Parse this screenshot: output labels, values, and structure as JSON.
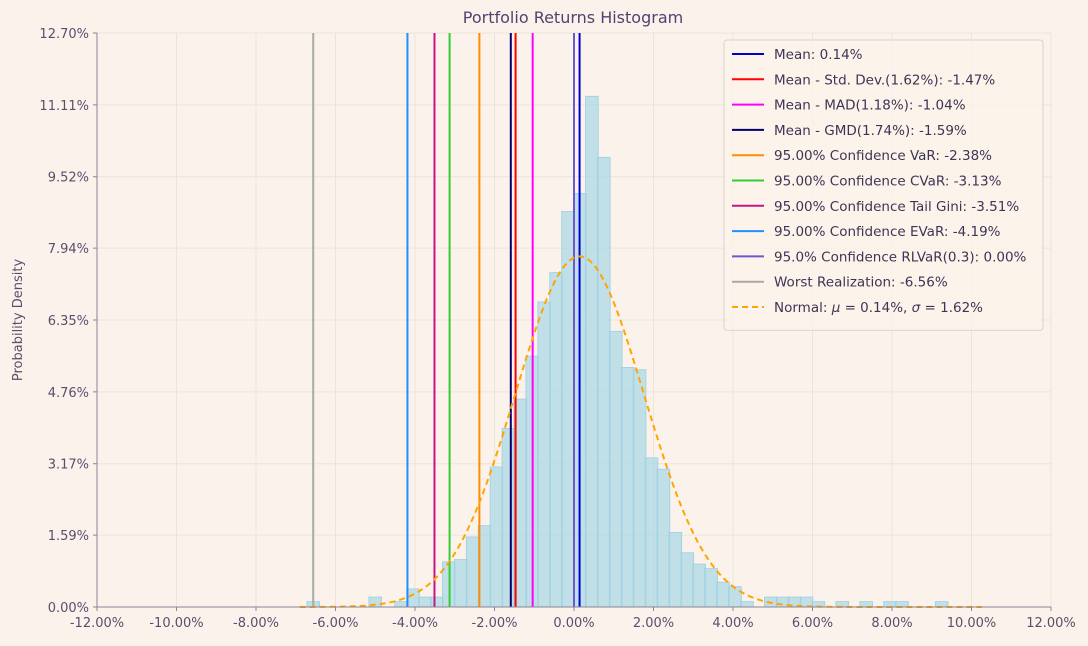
{
  "chart_data": {
    "type": "bar",
    "title": "Portfolio Returns Histogram",
    "xlabel": "",
    "ylabel": "Probability Density",
    "xlim": [
      -12,
      12
    ],
    "ylim": [
      0,
      12.7
    ],
    "x_ticks": [
      -12,
      -10,
      -8,
      -6,
      -4,
      -2,
      0,
      2,
      4,
      6,
      8,
      10,
      12
    ],
    "x_tick_labels": [
      "-12.00%",
      "-10.00%",
      "-8.00%",
      "-6.00%",
      "-4.00%",
      "-2.00%",
      "0.00%",
      "2.00%",
      "4.00%",
      "6.00%",
      "8.00%",
      "10.00%",
      "12.00%"
    ],
    "y_ticks": [
      0,
      1.59,
      3.17,
      4.76,
      6.35,
      7.94,
      9.52,
      11.11,
      12.7
    ],
    "y_tick_labels": [
      "0.00%",
      "1.59%",
      "3.17%",
      "4.76%",
      "6.35%",
      "7.94%",
      "9.52%",
      "11.11%",
      "12.70%"
    ],
    "grid": true,
    "legend_position": "top-right",
    "histogram": {
      "bin_width": 0.32,
      "bar_color": "#add8e6",
      "bars": [
        {
          "x": -6.56,
          "density": 0.12
        },
        {
          "x": -5.0,
          "density": 0.22
        },
        {
          "x": -4.35,
          "density": 0.12
        },
        {
          "x": -4.05,
          "density": 0.4
        },
        {
          "x": -3.75,
          "density": 0.22
        },
        {
          "x": -3.45,
          "density": 0.22
        },
        {
          "x": -3.15,
          "density": 1.0
        },
        {
          "x": -2.85,
          "density": 1.05
        },
        {
          "x": -2.55,
          "density": 1.55
        },
        {
          "x": -2.25,
          "density": 1.8
        },
        {
          "x": -1.95,
          "density": 3.1
        },
        {
          "x": -1.65,
          "density": 3.95
        },
        {
          "x": -1.35,
          "density": 4.6
        },
        {
          "x": -1.05,
          "density": 5.55
        },
        {
          "x": -0.75,
          "density": 6.75
        },
        {
          "x": -0.45,
          "density": 7.4
        },
        {
          "x": -0.15,
          "density": 8.75
        },
        {
          "x": 0.15,
          "density": 9.15
        },
        {
          "x": 0.45,
          "density": 11.3
        },
        {
          "x": 0.75,
          "density": 9.95
        },
        {
          "x": 1.05,
          "density": 6.1
        },
        {
          "x": 1.35,
          "density": 5.3
        },
        {
          "x": 1.65,
          "density": 5.25
        },
        {
          "x": 1.95,
          "density": 3.3
        },
        {
          "x": 2.25,
          "density": 3.05
        },
        {
          "x": 2.55,
          "density": 1.65
        },
        {
          "x": 2.85,
          "density": 1.2
        },
        {
          "x": 3.15,
          "density": 0.95
        },
        {
          "x": 3.45,
          "density": 0.85
        },
        {
          "x": 3.75,
          "density": 0.55
        },
        {
          "x": 4.05,
          "density": 0.45
        },
        {
          "x": 4.35,
          "density": 0.12
        },
        {
          "x": 4.95,
          "density": 0.22
        },
        {
          "x": 5.25,
          "density": 0.22
        },
        {
          "x": 5.55,
          "density": 0.22
        },
        {
          "x": 5.85,
          "density": 0.22
        },
        {
          "x": 6.15,
          "density": 0.12
        },
        {
          "x": 6.75,
          "density": 0.12
        },
        {
          "x": 7.35,
          "density": 0.12
        },
        {
          "x": 7.95,
          "density": 0.12
        },
        {
          "x": 8.25,
          "density": 0.12
        },
        {
          "x": 9.25,
          "density": 0.12
        }
      ]
    },
    "vertical_lines": [
      {
        "name": "Mean: 0.14%",
        "x": 0.14,
        "color": "#0000cd"
      },
      {
        "name": "Mean - Std. Dev.(1.62%): -1.47%",
        "x": -1.47,
        "color": "#ff0000"
      },
      {
        "name": "Mean - MAD(1.18%): -1.04%",
        "x": -1.04,
        "color": "#ff00ff"
      },
      {
        "name": "Mean - GMD(1.74%): -1.59%",
        "x": -1.59,
        "color": "#00006e"
      },
      {
        "name": "95.00% Confidence VaR: -2.38%",
        "x": -2.38,
        "color": "#ff8c00"
      },
      {
        "name": "95.00% Confidence CVaR: -3.13%",
        "x": -3.13,
        "color": "#32cd32"
      },
      {
        "name": "95.00% Confidence Tail Gini: -3.51%",
        "x": -3.51,
        "color": "#c71585"
      },
      {
        "name": "95.00% Confidence EVaR: -4.19%",
        "x": -4.19,
        "color": "#1e90ff"
      },
      {
        "name": "95.0% Confidence RLVaR(0.3): 0.00%",
        "x": 0.0,
        "color": "#6a5acd"
      },
      {
        "name": "Worst Realization: -6.56%",
        "x": -6.56,
        "color": "#a9a9a9"
      }
    ],
    "normal_curve": {
      "name_prefix": "Normal: ",
      "name_mu": "μ",
      "name_mu_value": " = 0.14%, ",
      "name_sigma": "σ",
      "name_sigma_value": " = 1.62%",
      "mu": 0.14,
      "sigma": 1.62,
      "color": "#ffa500"
    }
  }
}
